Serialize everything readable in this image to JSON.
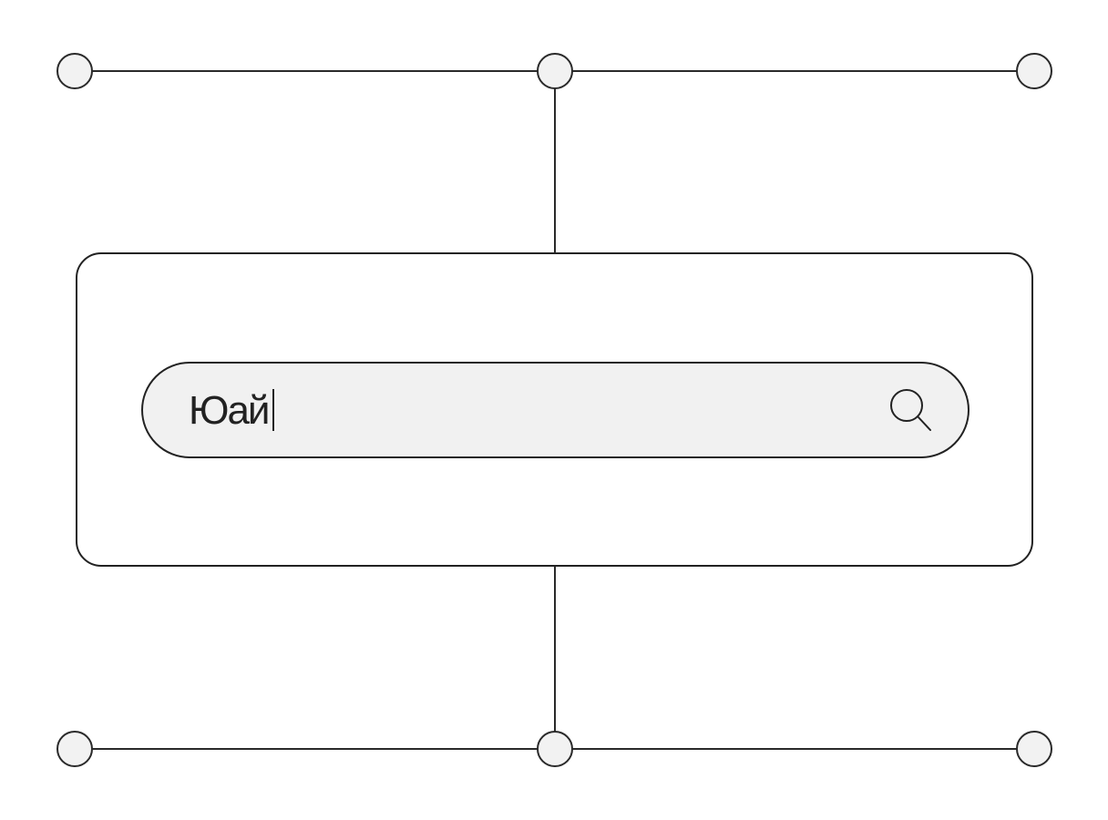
{
  "search": {
    "value": "Юай",
    "button_icon": "search-icon"
  },
  "colors": {
    "stroke": "#222222",
    "search_fill": "#f1f1f1",
    "node_fill": "#f2f2f2",
    "background": "#ffffff"
  }
}
